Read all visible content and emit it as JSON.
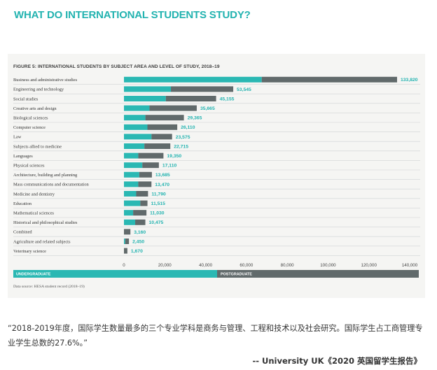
{
  "headline": "WHAT DO INTERNATIONAL STUDENTS STUDY?",
  "figure_title": "FIGURE 5: INTERNATIONAL STUDENTS BY SUBJECT AREA AND LEVEL OF STUDY, 2018–19",
  "source_note": "Data source: HESA student record (2018–19)",
  "quote": "“2018-2019年度，国际学生数量最多的三个专业学科是商务与管理、工程和技术以及社会研究。国际学生占工商管理专业学生总数的27.6%。”",
  "attribution": "-- University UK《2020 英国留学生报告》",
  "colors": {
    "accent": "#23b3b0",
    "undergraduate": "#2ab8b3",
    "postgraduate": "#616a6b"
  },
  "chart_data": {
    "type": "bar",
    "orientation": "horizontal",
    "stacked": true,
    "title": "FIGURE 5: INTERNATIONAL STUDENTS BY SUBJECT AREA AND LEVEL OF STUDY, 2018–19",
    "categories": [
      "Business and administrative studies",
      "Engineering and technology",
      "Social studies",
      "Creative arts and design",
      "Biological sciences",
      "Computer science",
      "Law",
      "Subjects allied to medicine",
      "Languages",
      "Physical sciences",
      "Architecture, building and planning",
      "Mass communications and documentation",
      "Medicine and dentistry",
      "Education",
      "Mathematical sciences",
      "Historical and philosophical studies",
      "Combined",
      "Agriculture and related subjects",
      "Veterinary science"
    ],
    "series": [
      {
        "name": "UNDERGRADUATE",
        "color": "#2ab8b3",
        "values": [
          67500,
          23000,
          20500,
          12500,
          10500,
          11500,
          13500,
          10000,
          7000,
          9000,
          7500,
          7000,
          6000,
          8000,
          4500,
          5500,
          0,
          600,
          0
        ]
      },
      {
        "name": "POSTGRADUATE",
        "color": "#616a6b",
        "values": [
          66320,
          30545,
          24655,
          23165,
          18865,
          14610,
          10075,
          12715,
          12350,
          8110,
          6185,
          6470,
          5790,
          3515,
          6530,
          4975,
          3160,
          1850,
          1670
        ]
      }
    ],
    "totals": [
      "133,820",
      "53,545",
      "45,155",
      "35,665",
      "29,365",
      "26,110",
      "23,575",
      "22,715",
      "19,350",
      "17,110",
      "13,685",
      "13,470",
      "11,790",
      "11,515",
      "11,030",
      "10,475",
      "3,160",
      "2,450",
      "1,670"
    ],
    "x_ticks": [
      "0",
      "20,000",
      "40,000",
      "60,000",
      "80,000",
      "100,000",
      "120,000",
      "140,000"
    ],
    "xlim": [
      0,
      140000
    ],
    "legend_position": "bottom",
    "grid": false
  }
}
